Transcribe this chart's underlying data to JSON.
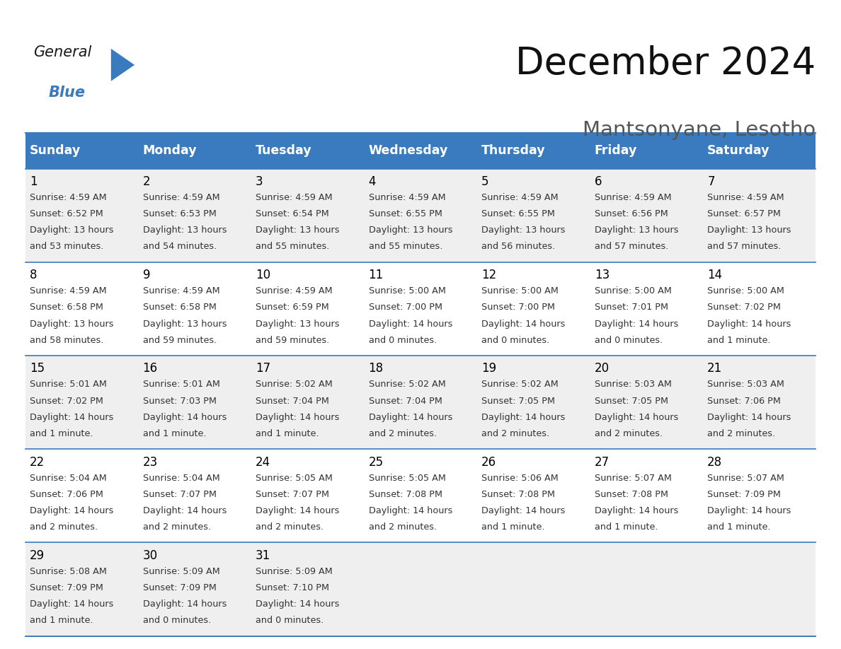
{
  "title": "December 2024",
  "subtitle": "Mantsonyane, Lesotho",
  "header_bg": "#3a7abf",
  "header_text": "#ffffff",
  "weekdays": [
    "Sunday",
    "Monday",
    "Tuesday",
    "Wednesday",
    "Thursday",
    "Friday",
    "Saturday"
  ],
  "row_bg_even": "#efefef",
  "row_bg_odd": "#ffffff",
  "cell_border": "#3a7abf",
  "day_number_color": "#000000",
  "info_text_color": "#333333",
  "days": [
    {
      "date": 1,
      "col": 0,
      "row": 0,
      "sunrise": "4:59 AM",
      "sunset": "6:52 PM",
      "daylight": "13 hours and 53 minutes."
    },
    {
      "date": 2,
      "col": 1,
      "row": 0,
      "sunrise": "4:59 AM",
      "sunset": "6:53 PM",
      "daylight": "13 hours and 54 minutes."
    },
    {
      "date": 3,
      "col": 2,
      "row": 0,
      "sunrise": "4:59 AM",
      "sunset": "6:54 PM",
      "daylight": "13 hours and 55 minutes."
    },
    {
      "date": 4,
      "col": 3,
      "row": 0,
      "sunrise": "4:59 AM",
      "sunset": "6:55 PM",
      "daylight": "13 hours and 55 minutes."
    },
    {
      "date": 5,
      "col": 4,
      "row": 0,
      "sunrise": "4:59 AM",
      "sunset": "6:55 PM",
      "daylight": "13 hours and 56 minutes."
    },
    {
      "date": 6,
      "col": 5,
      "row": 0,
      "sunrise": "4:59 AM",
      "sunset": "6:56 PM",
      "daylight": "13 hours and 57 minutes."
    },
    {
      "date": 7,
      "col": 6,
      "row": 0,
      "sunrise": "4:59 AM",
      "sunset": "6:57 PM",
      "daylight": "13 hours and 57 minutes."
    },
    {
      "date": 8,
      "col": 0,
      "row": 1,
      "sunrise": "4:59 AM",
      "sunset": "6:58 PM",
      "daylight": "13 hours and 58 minutes."
    },
    {
      "date": 9,
      "col": 1,
      "row": 1,
      "sunrise": "4:59 AM",
      "sunset": "6:58 PM",
      "daylight": "13 hours and 59 minutes."
    },
    {
      "date": 10,
      "col": 2,
      "row": 1,
      "sunrise": "4:59 AM",
      "sunset": "6:59 PM",
      "daylight": "13 hours and 59 minutes."
    },
    {
      "date": 11,
      "col": 3,
      "row": 1,
      "sunrise": "5:00 AM",
      "sunset": "7:00 PM",
      "daylight": "14 hours and 0 minutes."
    },
    {
      "date": 12,
      "col": 4,
      "row": 1,
      "sunrise": "5:00 AM",
      "sunset": "7:00 PM",
      "daylight": "14 hours and 0 minutes."
    },
    {
      "date": 13,
      "col": 5,
      "row": 1,
      "sunrise": "5:00 AM",
      "sunset": "7:01 PM",
      "daylight": "14 hours and 0 minutes."
    },
    {
      "date": 14,
      "col": 6,
      "row": 1,
      "sunrise": "5:00 AM",
      "sunset": "7:02 PM",
      "daylight": "14 hours and 1 minute."
    },
    {
      "date": 15,
      "col": 0,
      "row": 2,
      "sunrise": "5:01 AM",
      "sunset": "7:02 PM",
      "daylight": "14 hours and 1 minute."
    },
    {
      "date": 16,
      "col": 1,
      "row": 2,
      "sunrise": "5:01 AM",
      "sunset": "7:03 PM",
      "daylight": "14 hours and 1 minute."
    },
    {
      "date": 17,
      "col": 2,
      "row": 2,
      "sunrise": "5:02 AM",
      "sunset": "7:04 PM",
      "daylight": "14 hours and 1 minute."
    },
    {
      "date": 18,
      "col": 3,
      "row": 2,
      "sunrise": "5:02 AM",
      "sunset": "7:04 PM",
      "daylight": "14 hours and 2 minutes."
    },
    {
      "date": 19,
      "col": 4,
      "row": 2,
      "sunrise": "5:02 AM",
      "sunset": "7:05 PM",
      "daylight": "14 hours and 2 minutes."
    },
    {
      "date": 20,
      "col": 5,
      "row": 2,
      "sunrise": "5:03 AM",
      "sunset": "7:05 PM",
      "daylight": "14 hours and 2 minutes."
    },
    {
      "date": 21,
      "col": 6,
      "row": 2,
      "sunrise": "5:03 AM",
      "sunset": "7:06 PM",
      "daylight": "14 hours and 2 minutes."
    },
    {
      "date": 22,
      "col": 0,
      "row": 3,
      "sunrise": "5:04 AM",
      "sunset": "7:06 PM",
      "daylight": "14 hours and 2 minutes."
    },
    {
      "date": 23,
      "col": 1,
      "row": 3,
      "sunrise": "5:04 AM",
      "sunset": "7:07 PM",
      "daylight": "14 hours and 2 minutes."
    },
    {
      "date": 24,
      "col": 2,
      "row": 3,
      "sunrise": "5:05 AM",
      "sunset": "7:07 PM",
      "daylight": "14 hours and 2 minutes."
    },
    {
      "date": 25,
      "col": 3,
      "row": 3,
      "sunrise": "5:05 AM",
      "sunset": "7:08 PM",
      "daylight": "14 hours and 2 minutes."
    },
    {
      "date": 26,
      "col": 4,
      "row": 3,
      "sunrise": "5:06 AM",
      "sunset": "7:08 PM",
      "daylight": "14 hours and 1 minute."
    },
    {
      "date": 27,
      "col": 5,
      "row": 3,
      "sunrise": "5:07 AM",
      "sunset": "7:08 PM",
      "daylight": "14 hours and 1 minute."
    },
    {
      "date": 28,
      "col": 6,
      "row": 3,
      "sunrise": "5:07 AM",
      "sunset": "7:09 PM",
      "daylight": "14 hours and 1 minute."
    },
    {
      "date": 29,
      "col": 0,
      "row": 4,
      "sunrise": "5:08 AM",
      "sunset": "7:09 PM",
      "daylight": "14 hours and 1 minute."
    },
    {
      "date": 30,
      "col": 1,
      "row": 4,
      "sunrise": "5:09 AM",
      "sunset": "7:09 PM",
      "daylight": "14 hours and 0 minutes."
    },
    {
      "date": 31,
      "col": 2,
      "row": 4,
      "sunrise": "5:09 AM",
      "sunset": "7:10 PM",
      "daylight": "14 hours and 0 minutes."
    }
  ],
  "logo_general_color": "#1a1a1a",
  "logo_blue_color": "#3a7abf",
  "title_fontsize": 38,
  "subtitle_fontsize": 21,
  "header_fontsize": 12.5,
  "day_num_fontsize": 12,
  "info_fontsize": 9.2
}
